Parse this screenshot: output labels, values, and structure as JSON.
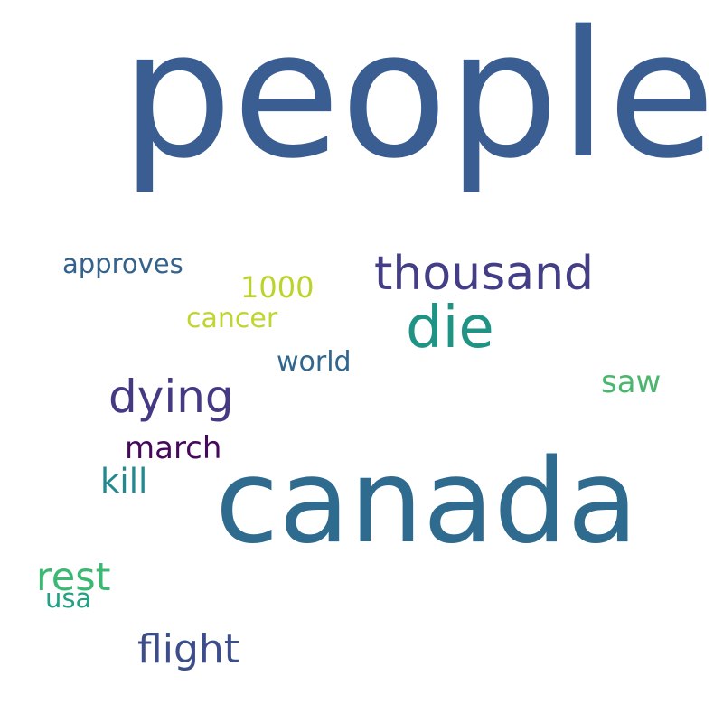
{
  "words": [
    {
      "text": "people",
      "color": "#3b5e92"
    },
    {
      "text": "canada",
      "color": "#2e6b8e"
    },
    {
      "text": "die",
      "color": "#1f9384"
    },
    {
      "text": "thousand",
      "color": "#433e85"
    },
    {
      "text": "dying",
      "color": "#443a83"
    },
    {
      "text": "flight",
      "color": "#3d4d8a"
    },
    {
      "text": "rest",
      "color": "#3ab972"
    },
    {
      "text": "march",
      "color": "#46085c"
    },
    {
      "text": "kill",
      "color": "#23898e"
    },
    {
      "text": "saw",
      "color": "#4ab66e"
    },
    {
      "text": "approves",
      "color": "#33628d"
    },
    {
      "text": "1000",
      "color": "#bcd32c"
    },
    {
      "text": "cancer",
      "color": "#c0d530"
    },
    {
      "text": "world",
      "color": "#31668e"
    },
    {
      "text": "usa",
      "color": "#24a085"
    }
  ]
}
